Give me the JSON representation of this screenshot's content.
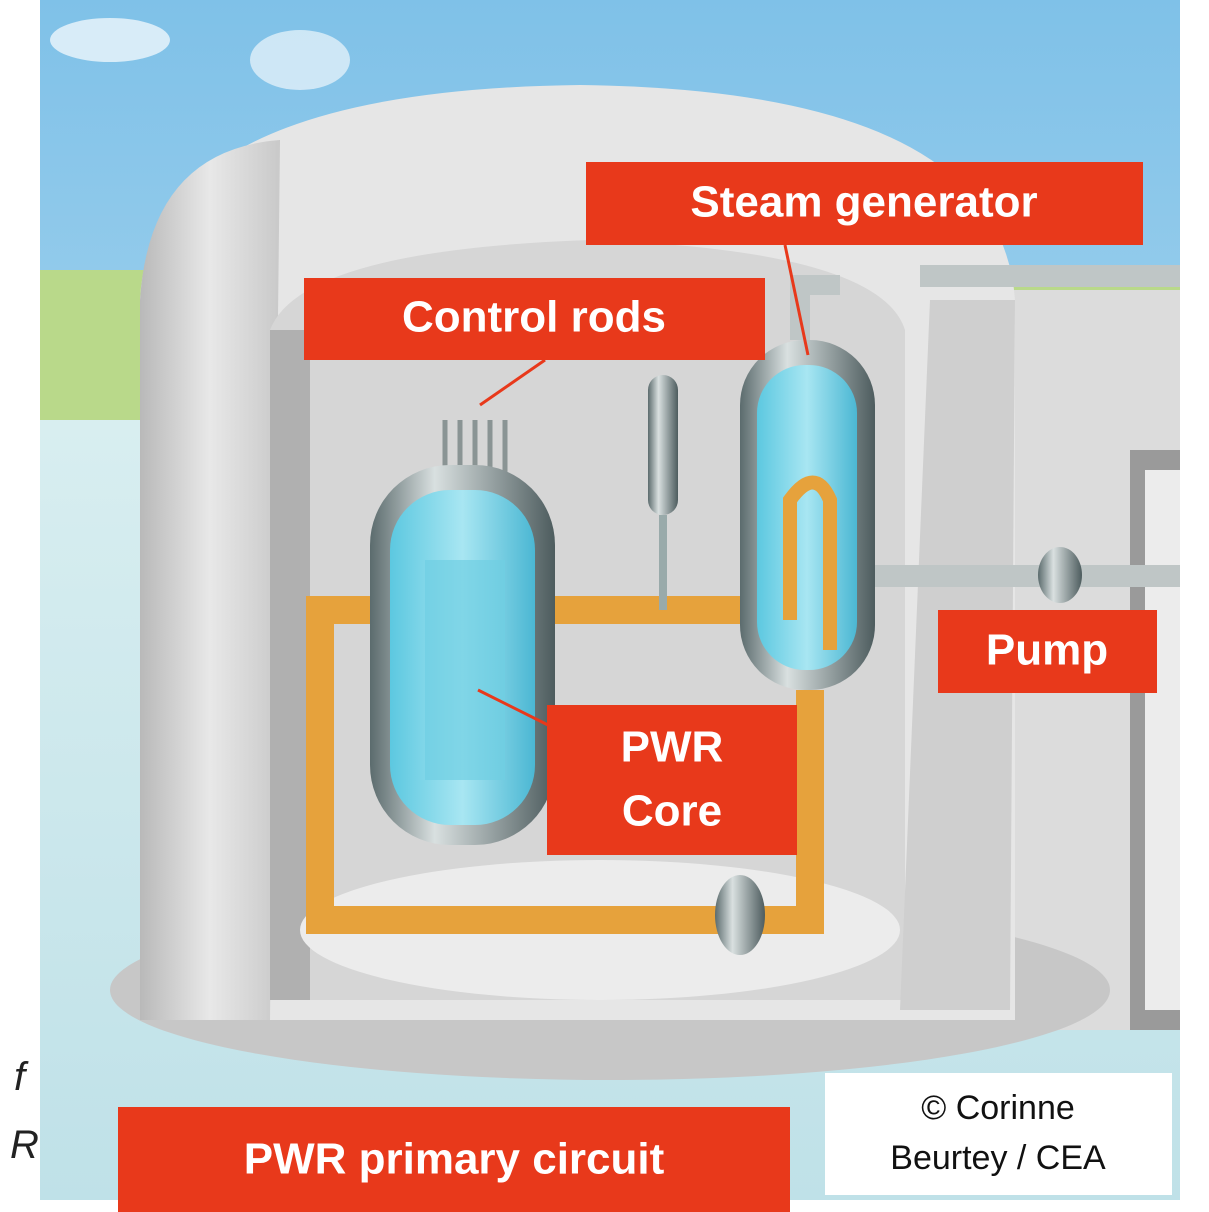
{
  "labels": {
    "steam_generator": "Steam generator",
    "control_rods": "Control rods",
    "pump": "Pump",
    "core": [
      "PWR",
      "Core"
    ]
  },
  "title": "PWR primary circuit",
  "credit": [
    "© Corinne",
    "Beurtey / CEA"
  ],
  "edge_fragments": [
    "f",
    "R"
  ]
}
